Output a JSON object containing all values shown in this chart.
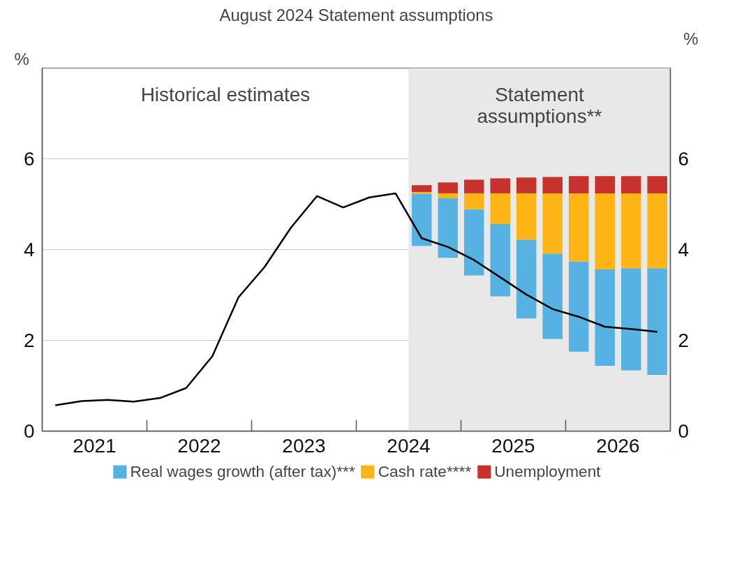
{
  "chart_data": {
    "type": "bar",
    "title": "August 2024 Statement assumptions",
    "ylabel": "%",
    "y2label": "%",
    "annotations": [
      "Historical estimates",
      "Statement assumptions**"
    ],
    "x": [
      2024.625,
      2024.875,
      2025.125,
      2025.375,
      2025.625,
      2025.875,
      2026.125,
      2026.375,
      2026.625,
      2026.875
    ],
    "stacked": true,
    "series": [
      {
        "name": "Real wages growth (after tax)***",
        "color": "#56b2e2",
        "base": [
          4.08,
          3.82,
          3.43,
          2.97,
          2.48,
          2.03,
          1.75,
          1.44,
          1.34,
          1.24
        ],
        "values": [
          1.15,
          1.31,
          1.46,
          1.59,
          1.74,
          1.88,
          1.99,
          2.12,
          2.25,
          2.35
        ]
      },
      {
        "name": "Cash rate****",
        "color": "#fdb515",
        "values": [
          0.04,
          0.11,
          0.35,
          0.68,
          1.02,
          1.33,
          1.5,
          1.68,
          1.65,
          1.65
        ]
      },
      {
        "name": "Unemployment",
        "color": "#c8322c",
        "values": [
          0.15,
          0.24,
          0.3,
          0.33,
          0.35,
          0.36,
          0.38,
          0.38,
          0.38,
          0.38
        ]
      },
      {
        "type": "line",
        "color": "#000000",
        "x": [
          2021.125,
          2021.375,
          2021.625,
          2021.875,
          2022.125,
          2022.375,
          2022.625,
          2022.875,
          2023.125,
          2023.375,
          2023.625,
          2023.875,
          2024.125,
          2024.375,
          2024.625,
          2024.875,
          2025.125,
          2025.375,
          2025.625,
          2025.875,
          2026.125,
          2026.375,
          2026.625,
          2026.875
        ],
        "values": [
          0.57,
          0.66,
          0.69,
          0.65,
          0.73,
          0.95,
          1.65,
          2.95,
          3.62,
          4.48,
          5.18,
          4.93,
          5.15,
          5.24,
          4.25,
          4.06,
          3.77,
          3.39,
          3.01,
          2.69,
          2.52,
          2.3,
          2.25,
          2.19
        ]
      }
    ],
    "bands": [
      {
        "axis": "x",
        "from": 2024.5,
        "to": 2027,
        "color": "#e8e8e8"
      }
    ],
    "xlim": [
      2021,
      2027
    ],
    "xticks": [
      {
        "value": 2021.5,
        "label": "2021"
      },
      {
        "value": 2022.5,
        "label": "2022"
      },
      {
        "value": 2023.5,
        "label": "2023"
      },
      {
        "value": 2024.5,
        "label": "2024"
      },
      {
        "value": 2025.5,
        "label": "2025"
      },
      {
        "value": 2026.5,
        "label": "2026"
      },
      {
        "value": 2022,
        "label": null
      },
      {
        "value": 2023,
        "label": null
      },
      {
        "value": 2024,
        "label": null
      },
      {
        "value": 2025,
        "label": null
      },
      {
        "value": 2026,
        "label": null
      }
    ],
    "ylim": [
      0,
      8
    ],
    "yticks": [
      0,
      2,
      4,
      6
    ],
    "y2lim": [
      0,
      8
    ],
    "y2ticks": [
      0,
      2,
      4,
      6
    ],
    "grid": "y",
    "legend": "bottom"
  }
}
